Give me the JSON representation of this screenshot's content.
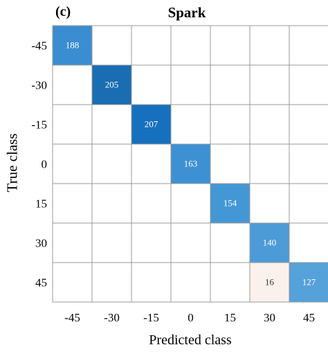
{
  "panel_label": "(c)",
  "chart_data": {
    "type": "heatmap",
    "title": "Spark",
    "xlabel": "Predicted class",
    "ylabel": "True class",
    "x_categories": [
      "-45",
      "-30",
      "-15",
      "0",
      "15",
      "30",
      "45"
    ],
    "y_categories": [
      "-45",
      "-30",
      "-15",
      "0",
      "15",
      "30",
      "45"
    ],
    "grid": true,
    "cells": [
      {
        "row": "-45",
        "col": "-45",
        "value": 188,
        "color": "#3a8dd0"
      },
      {
        "row": "-30",
        "col": "-30",
        "value": 205,
        "color": "#1a6db3"
      },
      {
        "row": "-15",
        "col": "-15",
        "value": 207,
        "color": "#1670bd"
      },
      {
        "row": "0",
        "col": "0",
        "value": 163,
        "color": "#3d91d3"
      },
      {
        "row": "15",
        "col": "15",
        "value": 154,
        "color": "#4497d5"
      },
      {
        "row": "30",
        "col": "30",
        "value": 140,
        "color": "#4c9bd7"
      },
      {
        "row": "45",
        "col": "30",
        "value": 16,
        "color": "#fbf1ec"
      },
      {
        "row": "45",
        "col": "45",
        "value": 127,
        "color": "#55a1da"
      }
    ]
  }
}
